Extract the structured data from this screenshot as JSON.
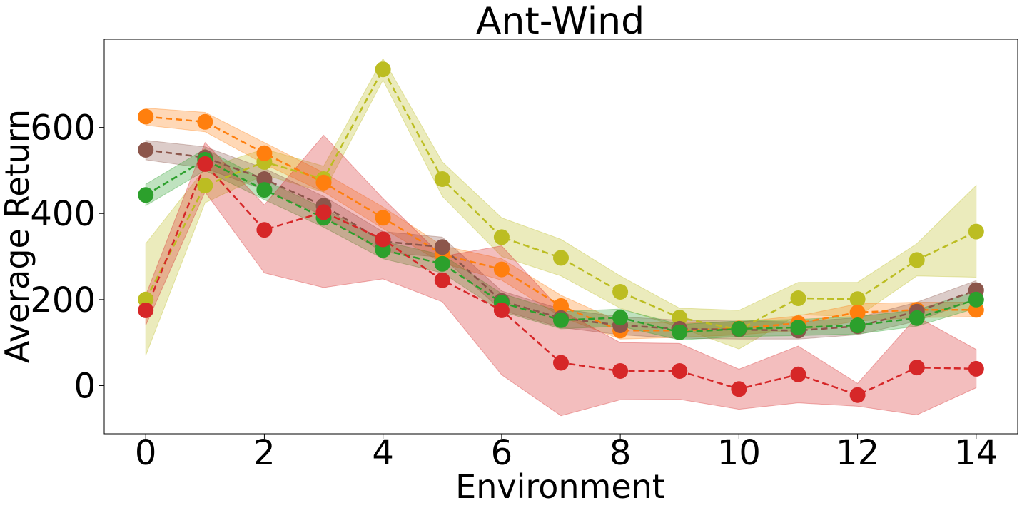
{
  "chart_data": {
    "type": "line",
    "title": "Ant-Wind",
    "xlabel": "Environment",
    "ylabel": "Average Return",
    "xlim": [
      -0.7,
      14.7
    ],
    "ylim": [
      -112,
      805
    ],
    "xticks": [
      0,
      2,
      4,
      6,
      8,
      10,
      12,
      14
    ],
    "yticks": [
      0,
      200,
      400,
      600
    ],
    "grid": false,
    "legend": "none",
    "x": [
      0,
      1,
      2,
      3,
      4,
      5,
      6,
      7,
      8,
      9,
      10,
      11,
      12,
      13,
      14
    ],
    "series": [
      {
        "name": "yellow-green",
        "color": "#bcbd22",
        "values": [
          200,
          465,
          520,
          480,
          735,
          480,
          345,
          297,
          218,
          158,
          130,
          203,
          201,
          292,
          358
        ],
        "lower": [
          70,
          425,
          490,
          450,
          710,
          440,
          300,
          255,
          180,
          135,
          85,
          165,
          160,
          255,
          252
        ],
        "upper": [
          330,
          505,
          550,
          510,
          760,
          520,
          390,
          340,
          255,
          180,
          175,
          240,
          240,
          330,
          465
        ]
      },
      {
        "name": "orange",
        "color": "#ff7f0e",
        "values": [
          625,
          613,
          540,
          472,
          390,
          305,
          270,
          185,
          128,
          128,
          133,
          145,
          170,
          176,
          176
        ],
        "lower": [
          605,
          590,
          515,
          450,
          365,
          285,
          245,
          160,
          108,
          112,
          118,
          128,
          150,
          158,
          160
        ],
        "upper": [
          645,
          635,
          565,
          495,
          415,
          325,
          295,
          210,
          148,
          145,
          148,
          162,
          190,
          194,
          194
        ]
      },
      {
        "name": "brown",
        "color": "#8c564b",
        "values": [
          548,
          530,
          480,
          418,
          335,
          322,
          197,
          157,
          140,
          132,
          130,
          128,
          138,
          172,
          222
        ],
        "lower": [
          525,
          505,
          455,
          395,
          310,
          298,
          175,
          135,
          118,
          110,
          108,
          108,
          118,
          150,
          200
        ],
        "upper": [
          570,
          555,
          505,
          440,
          358,
          345,
          220,
          178,
          160,
          152,
          150,
          148,
          158,
          194,
          244
        ]
      },
      {
        "name": "green",
        "color": "#2ca02c",
        "values": [
          443,
          525,
          455,
          390,
          315,
          283,
          193,
          152,
          158,
          124,
          132,
          135,
          140,
          157,
          200
        ],
        "lower": [
          418,
          500,
          432,
          368,
          295,
          262,
          172,
          132,
          138,
          106,
          114,
          116,
          120,
          138,
          180
        ],
        "upper": [
          468,
          550,
          478,
          412,
          335,
          304,
          214,
          172,
          178,
          142,
          150,
          154,
          160,
          176,
          220
        ]
      },
      {
        "name": "red",
        "color": "#d62728",
        "values": [
          175,
          515,
          362,
          403,
          340,
          245,
          175,
          53,
          34,
          34,
          -8,
          26,
          -22,
          42,
          39
        ],
        "lower": [
          140,
          450,
          262,
          228,
          248,
          195,
          25,
          -70,
          -33,
          -32,
          -55,
          -40,
          -48,
          -68,
          -5
        ],
        "upper": [
          210,
          565,
          420,
          582,
          435,
          300,
          325,
          175,
          100,
          98,
          38,
          92,
          5,
          160,
          84
        ]
      }
    ]
  }
}
